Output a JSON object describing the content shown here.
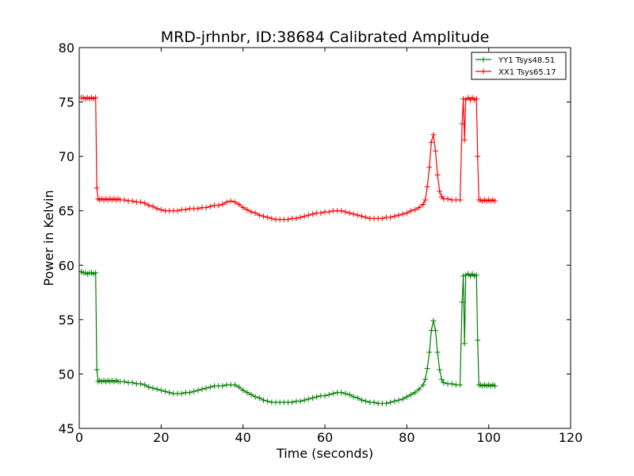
{
  "chart_data": {
    "type": "line",
    "title": "MRD-jrhnbr, ID:38684 Calibrated Amplitude",
    "xlabel": "Time (seconds)",
    "ylabel": "Power in Kelvin",
    "xlim": [
      0,
      120
    ],
    "ylim": [
      45,
      80
    ],
    "xticks": [
      0,
      20,
      40,
      60,
      80,
      100,
      120
    ],
    "yticks": [
      45,
      50,
      55,
      60,
      65,
      70,
      75,
      80
    ],
    "grid": false,
    "legend_position": "top-right",
    "marker": "+",
    "series": [
      {
        "name": "YY1 Tsys48.51",
        "color": "#008000",
        "points": [
          [
            0.5,
            59.4
          ],
          [
            1.0,
            59.3
          ],
          [
            1.5,
            59.3
          ],
          [
            2.0,
            59.2
          ],
          [
            2.5,
            59.3
          ],
          [
            3.0,
            59.3
          ],
          [
            3.5,
            59.2
          ],
          [
            4.0,
            59.3
          ],
          [
            4.3,
            50.4
          ],
          [
            4.6,
            49.3
          ],
          [
            5.0,
            49.4
          ],
          [
            5.5,
            49.3
          ],
          [
            6.0,
            49.4
          ],
          [
            6.5,
            49.3
          ],
          [
            7.0,
            49.4
          ],
          [
            7.5,
            49.3
          ],
          [
            8.0,
            49.4
          ],
          [
            8.5,
            49.3
          ],
          [
            9.0,
            49.4
          ],
          [
            9.5,
            49.3
          ],
          [
            10.0,
            49.3
          ],
          [
            11.0,
            49.3
          ],
          [
            12.0,
            49.2
          ],
          [
            13.0,
            49.2
          ],
          [
            14.0,
            49.1
          ],
          [
            15.0,
            49.1
          ],
          [
            16.0,
            49.0
          ],
          [
            17.0,
            48.8
          ],
          [
            18.0,
            48.7
          ],
          [
            19.0,
            48.6
          ],
          [
            20.0,
            48.5
          ],
          [
            21.0,
            48.4
          ],
          [
            22.0,
            48.3
          ],
          [
            23.0,
            48.2
          ],
          [
            24.0,
            48.2
          ],
          [
            25.0,
            48.2
          ],
          [
            26.0,
            48.3
          ],
          [
            27.0,
            48.3
          ],
          [
            28.0,
            48.4
          ],
          [
            29.0,
            48.5
          ],
          [
            30.0,
            48.6
          ],
          [
            31.0,
            48.7
          ],
          [
            32.0,
            48.8
          ],
          [
            33.0,
            48.9
          ],
          [
            34.0,
            48.9
          ],
          [
            35.0,
            48.9
          ],
          [
            36.0,
            49.0
          ],
          [
            37.0,
            49.0
          ],
          [
            38.0,
            49.0
          ],
          [
            39.0,
            48.8
          ],
          [
            40.0,
            48.5
          ],
          [
            41.0,
            48.3
          ],
          [
            42.0,
            48.1
          ],
          [
            43.0,
            47.9
          ],
          [
            44.0,
            47.8
          ],
          [
            45.0,
            47.6
          ],
          [
            46.0,
            47.5
          ],
          [
            47.0,
            47.4
          ],
          [
            48.0,
            47.4
          ],
          [
            49.0,
            47.4
          ],
          [
            50.0,
            47.4
          ],
          [
            51.0,
            47.4
          ],
          [
            52.0,
            47.4
          ],
          [
            53.0,
            47.5
          ],
          [
            54.0,
            47.5
          ],
          [
            55.0,
            47.6
          ],
          [
            56.0,
            47.7
          ],
          [
            57.0,
            47.8
          ],
          [
            58.0,
            47.9
          ],
          [
            59.0,
            48.0
          ],
          [
            60.0,
            48.0
          ],
          [
            61.0,
            48.1
          ],
          [
            62.0,
            48.2
          ],
          [
            63.0,
            48.3
          ],
          [
            64.0,
            48.3
          ],
          [
            65.0,
            48.2
          ],
          [
            66.0,
            48.1
          ],
          [
            67.0,
            47.9
          ],
          [
            68.0,
            47.8
          ],
          [
            69.0,
            47.6
          ],
          [
            70.0,
            47.5
          ],
          [
            71.0,
            47.4
          ],
          [
            72.0,
            47.4
          ],
          [
            73.0,
            47.3
          ],
          [
            74.0,
            47.3
          ],
          [
            75.0,
            47.3
          ],
          [
            76.0,
            47.4
          ],
          [
            77.0,
            47.5
          ],
          [
            78.0,
            47.6
          ],
          [
            79.0,
            47.7
          ],
          [
            80.0,
            47.9
          ],
          [
            81.0,
            48.1
          ],
          [
            82.0,
            48.3
          ],
          [
            83.0,
            48.6
          ],
          [
            84.0,
            49.0
          ],
          [
            84.5,
            49.5
          ],
          [
            85.0,
            50.5
          ],
          [
            85.5,
            52.0
          ],
          [
            86.0,
            54.0
          ],
          [
            86.5,
            54.9
          ],
          [
            87.0,
            54.0
          ],
          [
            87.5,
            52.0
          ],
          [
            88.0,
            50.4
          ],
          [
            88.5,
            49.5
          ],
          [
            89.0,
            49.2
          ],
          [
            90.0,
            49.1
          ],
          [
            91.0,
            49.1
          ],
          [
            92.0,
            49.0
          ],
          [
            93.0,
            49.0
          ],
          [
            93.5,
            56.6
          ],
          [
            93.8,
            59.0
          ],
          [
            94.1,
            52.8
          ],
          [
            94.4,
            59.1
          ],
          [
            95.0,
            59.2
          ],
          [
            95.5,
            59.0
          ],
          [
            96.0,
            59.2
          ],
          [
            96.5,
            59.0
          ],
          [
            97.0,
            59.1
          ],
          [
            97.3,
            53.1
          ],
          [
            97.6,
            49.0
          ],
          [
            98.0,
            49.0
          ],
          [
            98.5,
            48.9
          ],
          [
            99.0,
            49.0
          ],
          [
            99.5,
            48.9
          ],
          [
            100.0,
            49.0
          ],
          [
            100.5,
            48.9
          ],
          [
            101.0,
            49.0
          ],
          [
            101.5,
            48.9
          ]
        ]
      },
      {
        "name": "XX1 Tsys65.17",
        "color": "#ff0000",
        "points": [
          [
            0.5,
            75.4
          ],
          [
            1.0,
            75.4
          ],
          [
            1.5,
            75.3
          ],
          [
            2.0,
            75.4
          ],
          [
            2.5,
            75.3
          ],
          [
            3.0,
            75.4
          ],
          [
            3.5,
            75.3
          ],
          [
            4.0,
            75.4
          ],
          [
            4.3,
            67.1
          ],
          [
            4.6,
            66.1
          ],
          [
            5.0,
            66.0
          ],
          [
            5.5,
            66.1
          ],
          [
            6.0,
            66.0
          ],
          [
            6.5,
            66.1
          ],
          [
            7.0,
            66.0
          ],
          [
            7.5,
            66.1
          ],
          [
            8.0,
            66.0
          ],
          [
            8.5,
            66.1
          ],
          [
            9.0,
            66.0
          ],
          [
            9.5,
            66.1
          ],
          [
            10.0,
            66.0
          ],
          [
            11.0,
            66.0
          ],
          [
            12.0,
            65.9
          ],
          [
            13.0,
            65.9
          ],
          [
            14.0,
            65.8
          ],
          [
            15.0,
            65.8
          ],
          [
            16.0,
            65.7
          ],
          [
            17.0,
            65.5
          ],
          [
            18.0,
            65.4
          ],
          [
            19.0,
            65.2
          ],
          [
            20.0,
            65.1
          ],
          [
            21.0,
            65.0
          ],
          [
            22.0,
            65.0
          ],
          [
            23.0,
            65.0
          ],
          [
            24.0,
            65.0
          ],
          [
            25.0,
            65.1
          ],
          [
            26.0,
            65.1
          ],
          [
            27.0,
            65.2
          ],
          [
            28.0,
            65.2
          ],
          [
            29.0,
            65.2
          ],
          [
            30.0,
            65.3
          ],
          [
            31.0,
            65.3
          ],
          [
            32.0,
            65.4
          ],
          [
            33.0,
            65.5
          ],
          [
            34.0,
            65.5
          ],
          [
            35.0,
            65.6
          ],
          [
            36.0,
            65.8
          ],
          [
            37.0,
            65.9
          ],
          [
            38.0,
            65.8
          ],
          [
            39.0,
            65.6
          ],
          [
            40.0,
            65.3
          ],
          [
            41.0,
            65.1
          ],
          [
            42.0,
            64.9
          ],
          [
            43.0,
            64.8
          ],
          [
            44.0,
            64.6
          ],
          [
            45.0,
            64.5
          ],
          [
            46.0,
            64.4
          ],
          [
            47.0,
            64.3
          ],
          [
            48.0,
            64.2
          ],
          [
            49.0,
            64.2
          ],
          [
            50.0,
            64.2
          ],
          [
            51.0,
            64.2
          ],
          [
            52.0,
            64.3
          ],
          [
            53.0,
            64.3
          ],
          [
            54.0,
            64.4
          ],
          [
            55.0,
            64.5
          ],
          [
            56.0,
            64.6
          ],
          [
            57.0,
            64.7
          ],
          [
            58.0,
            64.8
          ],
          [
            59.0,
            64.8
          ],
          [
            60.0,
            64.9
          ],
          [
            61.0,
            64.9
          ],
          [
            62.0,
            65.0
          ],
          [
            63.0,
            65.0
          ],
          [
            64.0,
            65.0
          ],
          [
            65.0,
            64.9
          ],
          [
            66.0,
            64.8
          ],
          [
            67.0,
            64.7
          ],
          [
            68.0,
            64.6
          ],
          [
            69.0,
            64.5
          ],
          [
            70.0,
            64.4
          ],
          [
            71.0,
            64.3
          ],
          [
            72.0,
            64.3
          ],
          [
            73.0,
            64.3
          ],
          [
            74.0,
            64.3
          ],
          [
            75.0,
            64.4
          ],
          [
            76.0,
            64.4
          ],
          [
            77.0,
            64.5
          ],
          [
            78.0,
            64.6
          ],
          [
            79.0,
            64.7
          ],
          [
            80.0,
            64.8
          ],
          [
            81.0,
            65.0
          ],
          [
            82.0,
            65.1
          ],
          [
            83.0,
            65.3
          ],
          [
            84.0,
            65.6
          ],
          [
            84.5,
            66.0
          ],
          [
            85.0,
            67.2
          ],
          [
            85.5,
            69.0
          ],
          [
            86.0,
            71.3
          ],
          [
            86.5,
            72.0
          ],
          [
            87.0,
            70.5
          ],
          [
            87.5,
            68.3
          ],
          [
            88.0,
            66.8
          ],
          [
            88.5,
            66.3
          ],
          [
            89.0,
            66.1
          ],
          [
            90.0,
            66.1
          ],
          [
            91.0,
            66.0
          ],
          [
            92.0,
            66.0
          ],
          [
            93.0,
            66.0
          ],
          [
            93.5,
            73.0
          ],
          [
            93.8,
            75.3
          ],
          [
            94.1,
            71.5
          ],
          [
            94.4,
            75.2
          ],
          [
            95.0,
            75.4
          ],
          [
            95.5,
            75.2
          ],
          [
            96.0,
            75.4
          ],
          [
            96.5,
            75.2
          ],
          [
            97.0,
            75.3
          ],
          [
            97.3,
            70.0
          ],
          [
            97.6,
            66.0
          ],
          [
            98.0,
            66.0
          ],
          [
            98.5,
            65.9
          ],
          [
            99.0,
            66.0
          ],
          [
            99.5,
            65.9
          ],
          [
            100.0,
            66.0
          ],
          [
            100.5,
            65.9
          ],
          [
            101.0,
            66.0
          ],
          [
            101.5,
            65.9
          ]
        ]
      }
    ]
  }
}
